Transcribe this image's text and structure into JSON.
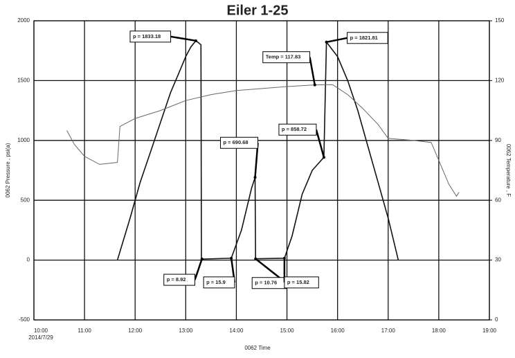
{
  "chart_data": {
    "type": "line",
    "title": "Eiler 1-25",
    "xlabel": "0062 Time",
    "ylabel": "0062 Pressure , psi(a)",
    "y2label": "0062 Temperature , F",
    "x_date_label": "2014/7/29",
    "xlim": [
      10,
      19
    ],
    "xticks": [
      {
        "value": 10,
        "label": "10:00"
      },
      {
        "value": 11,
        "label": "11:00"
      },
      {
        "value": 12,
        "label": "12:00"
      },
      {
        "value": 13,
        "label": "13:00"
      },
      {
        "value": 14,
        "label": "14:00"
      },
      {
        "value": 15,
        "label": "15:00"
      },
      {
        "value": 16,
        "label": "16:00"
      },
      {
        "value": 17,
        "label": "17:00"
      },
      {
        "value": 18,
        "label": "18:00"
      },
      {
        "value": 19,
        "label": "19:00"
      }
    ],
    "ylim": [
      -500,
      2000
    ],
    "yticks": [
      -500,
      0,
      500,
      1000,
      1500,
      2000
    ],
    "y2lim": [
      0,
      150
    ],
    "y2ticks": [
      0,
      30,
      60,
      90,
      120,
      150
    ],
    "grid": true,
    "series": [
      {
        "name": "Pressure",
        "color": "#111111",
        "x": [
          11.65,
          11.9,
          12.1,
          12.3,
          12.5,
          12.7,
          12.85,
          13.0,
          13.1,
          13.2,
          13.3,
          13.31,
          13.32,
          13.9,
          14.1,
          14.3,
          14.37,
          14.38,
          14.95,
          15.1,
          15.3,
          15.5,
          15.73,
          15.78,
          16.0,
          16.2,
          16.4,
          16.6,
          16.8,
          17.0,
          17.2
        ],
        "values": [
          0,
          350,
          650,
          900,
          1150,
          1400,
          1550,
          1700,
          1780,
          1833.18,
          1800,
          0,
          8.92,
          15.9,
          250,
          600,
          690.68,
          10.76,
          15.82,
          200,
          550,
          750,
          858.72,
          1821.81,
          1700,
          1500,
          1250,
          950,
          650,
          350,
          0
        ]
      },
      {
        "name": "Temperature",
        "color": "#666666",
        "axis": "y2",
        "x": [
          10.65,
          10.8,
          11.0,
          11.3,
          11.65,
          11.7,
          12.0,
          12.5,
          13.0,
          13.5,
          14.0,
          14.5,
          15.0,
          15.55,
          15.9,
          16.2,
          16.5,
          16.8,
          17.0,
          17.5,
          17.85,
          18.0,
          18.2,
          18.35,
          18.4
        ],
        "values": [
          95,
          88,
          82,
          78,
          79,
          97,
          101,
          105,
          110,
          113,
          115,
          116,
          117,
          117.83,
          118,
          113,
          106,
          98,
          91,
          90,
          89,
          80,
          68,
          62,
          64
        ]
      }
    ],
    "annotations": [
      {
        "x": 13.2,
        "value": 1833.18,
        "label": "p = 1833.18"
      },
      {
        "x": 15.78,
        "value": 1821.81,
        "label": "p = 1821.81"
      },
      {
        "x": 15.55,
        "value": 117.83,
        "axis": "y2",
        "label": "Temp = 117.83"
      },
      {
        "x": 14.37,
        "value": 690.68,
        "label": "p = 690.68"
      },
      {
        "x": 15.73,
        "value": 858.72,
        "label": "p = 858.72"
      },
      {
        "x": 13.32,
        "value": 8.92,
        "label": "p = 8.92"
      },
      {
        "x": 13.9,
        "value": 15.9,
        "label": "p = 15.9"
      },
      {
        "x": 14.38,
        "value": 10.76,
        "label": "p = 10.76"
      },
      {
        "x": 14.95,
        "value": 15.82,
        "label": "p = 15.82"
      }
    ]
  }
}
